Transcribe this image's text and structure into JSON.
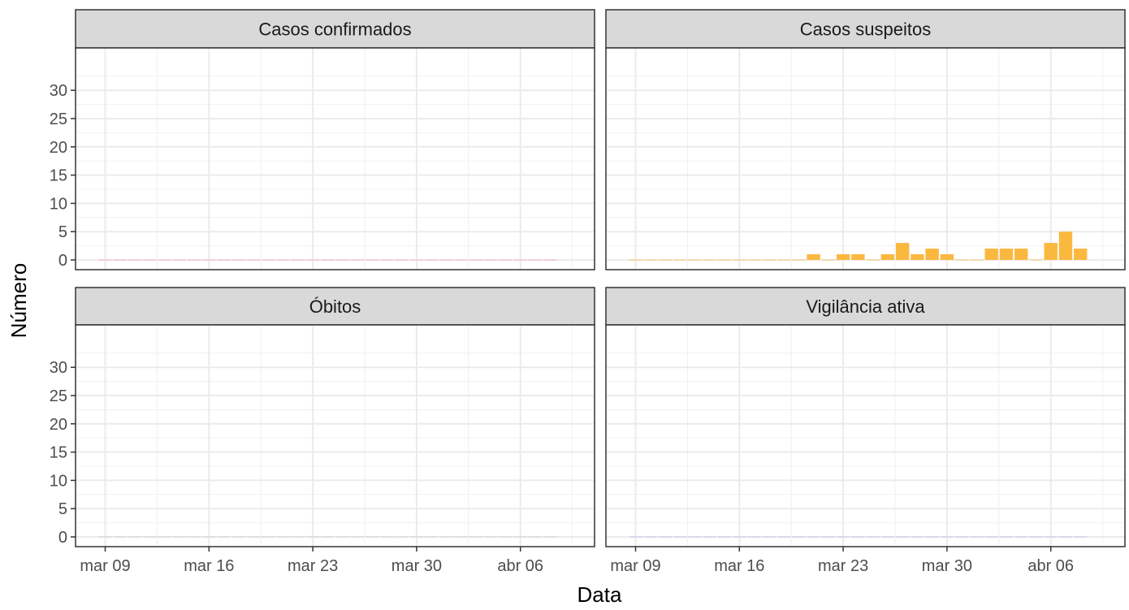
{
  "chart_data": {
    "type": "bar",
    "xlabel": "Data",
    "ylabel": "Número",
    "ylim": [
      0,
      30
    ],
    "y_ticks": [
      0,
      5,
      10,
      15,
      20,
      25,
      30
    ],
    "x_ticks": [
      {
        "date": "2020-03-09",
        "label": "mar 09"
      },
      {
        "date": "2020-03-16",
        "label": "mar 16"
      },
      {
        "date": "2020-03-23",
        "label": "mar 23"
      },
      {
        "date": "2020-03-30",
        "label": "mar 30"
      },
      {
        "date": "2020-04-06",
        "label": "abr 06"
      }
    ],
    "x_range": [
      "2020-03-07",
      "2020-04-11"
    ],
    "grid": true,
    "legend": "none",
    "dates": [
      "2020-03-09",
      "2020-03-10",
      "2020-03-11",
      "2020-03-12",
      "2020-03-13",
      "2020-03-14",
      "2020-03-15",
      "2020-03-16",
      "2020-03-17",
      "2020-03-18",
      "2020-03-19",
      "2020-03-20",
      "2020-03-21",
      "2020-03-22",
      "2020-03-23",
      "2020-03-24",
      "2020-03-25",
      "2020-03-26",
      "2020-03-27",
      "2020-03-28",
      "2020-03-29",
      "2020-03-30",
      "2020-03-31",
      "2020-04-01",
      "2020-04-02",
      "2020-04-03",
      "2020-04-04",
      "2020-04-05",
      "2020-04-06",
      "2020-04-07",
      "2020-04-08"
    ],
    "panels": [
      {
        "name": "Casos confirmados",
        "color": "#f4a0b0",
        "values": [
          0,
          0,
          0,
          0,
          0,
          0,
          0,
          0,
          0,
          0,
          0,
          0,
          0,
          0,
          0,
          0,
          0,
          0,
          0,
          0,
          0,
          0,
          0,
          0,
          0,
          0,
          0,
          0,
          0,
          0,
          0
        ]
      },
      {
        "name": "Casos suspeitos",
        "color": "#fbb83f",
        "values": [
          0,
          0,
          0,
          0,
          0,
          0,
          0,
          0,
          0,
          0,
          0,
          0,
          1,
          0,
          1,
          1,
          0,
          1,
          3,
          1,
          2,
          1,
          0,
          0,
          2,
          2,
          2,
          0,
          3,
          5,
          2
        ]
      },
      {
        "name": "Óbitos",
        "color": "#c9c9c9",
        "values": [
          0,
          0,
          0,
          0,
          0,
          0,
          0,
          0,
          0,
          0,
          0,
          0,
          0,
          0,
          0,
          0,
          0,
          0,
          0,
          0,
          0,
          0,
          0,
          0,
          0,
          0,
          0,
          0,
          0,
          0,
          0
        ]
      },
      {
        "name": "Vigilância ativa",
        "color": "#b8b4ec",
        "values": [
          0,
          0,
          0,
          0,
          0,
          0,
          0,
          0,
          0,
          0,
          0,
          0,
          0,
          0,
          0,
          0,
          0,
          0,
          0,
          0,
          0,
          0,
          0,
          0,
          0,
          0,
          0,
          0,
          0,
          0,
          0
        ]
      }
    ]
  }
}
